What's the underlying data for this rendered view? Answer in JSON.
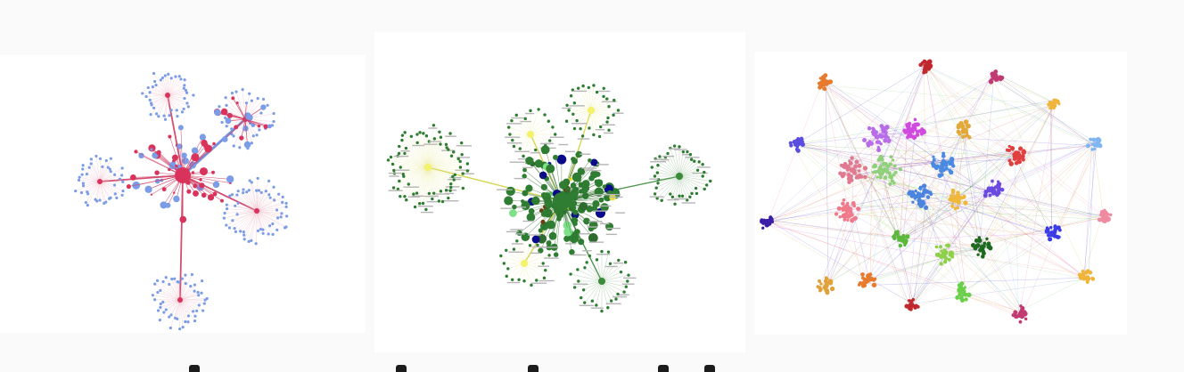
{
  "panels": [
    {
      "id": "panel-1",
      "kind": "radial-cluster-network",
      "colors": {
        "hub": "#d9335c",
        "hub_edge": "#cf3b63",
        "leaf": "#7b9ce6",
        "leaf_edge": "#e8a3b6",
        "link_blue": "#6f95e3"
      }
    },
    {
      "id": "panel-2",
      "kind": "hub-and-spoke-network",
      "colors": {
        "core": "#2e7d32",
        "leaf": "#2e7d32",
        "hub_yellow": "#f4f16a",
        "link_yellow": "#cfd23d",
        "edge_green": "#3a8a3a",
        "accents": [
          "#0a0a8a",
          "#6b3f15",
          "#7fe08a",
          "#e8e23a",
          "#2f6b2f"
        ]
      }
    },
    {
      "id": "panel-3",
      "kind": "multi-community-network",
      "colors": {
        "communities": [
          "#e87a2e",
          "#c0282e",
          "#c23a72",
          "#f0b43a",
          "#5a4de0",
          "#b86de8",
          "#d04ae0",
          "#e3a83a",
          "#e04040",
          "#4a8ae0",
          "#e07a90",
          "#8fd07a",
          "#6a4ae0",
          "#7fb6f0",
          "#3a1ea8",
          "#f07a8a",
          "#4a84e0",
          "#f0b83a",
          "#f08aa0",
          "#5ab83a",
          "#8fd04a",
          "#6ad04a",
          "#1e6a1e",
          "#3a3ae8",
          "#e0a03a"
        ]
      }
    }
  ]
}
